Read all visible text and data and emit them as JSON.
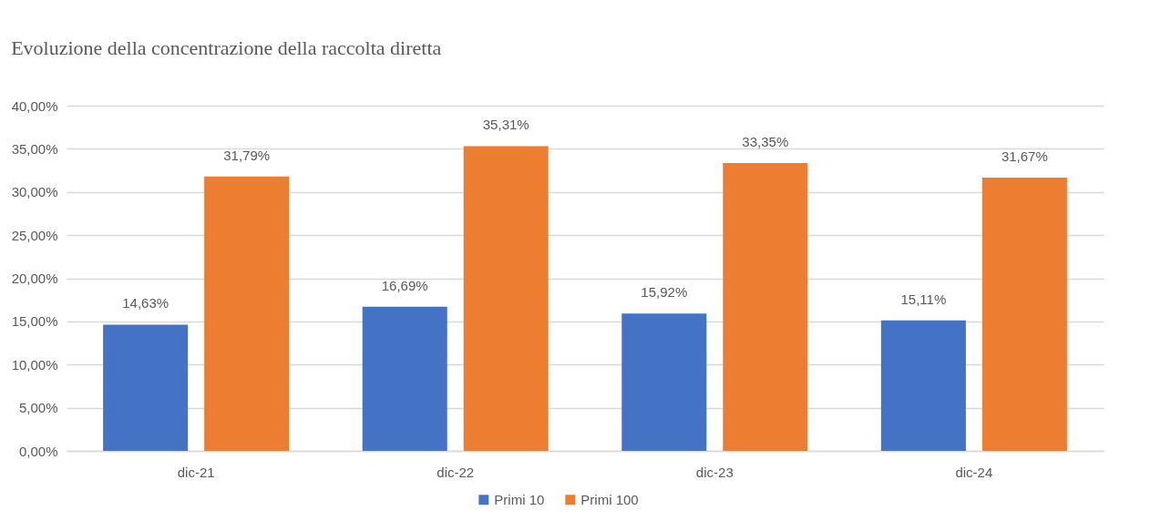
{
  "chart_data": {
    "type": "bar",
    "title": "Evoluzione della concentrazione della raccolta diretta",
    "categories": [
      "dic-21",
      "dic-22",
      "dic-23",
      "dic-24"
    ],
    "series": [
      {
        "name": "Primi 10",
        "color": "#4472c4",
        "values": [
          14.63,
          16.69,
          15.92,
          15.11
        ],
        "value_labels": [
          "14,63%",
          "16,69%",
          "15,92%",
          "15,11%"
        ]
      },
      {
        "name": "Primi 100",
        "color": "#ed7d31",
        "values": [
          31.79,
          35.31,
          33.35,
          31.67
        ],
        "value_labels": [
          "31,79%",
          "35,31%",
          "33,35%",
          "31,67%"
        ]
      }
    ],
    "ylim": [
      0,
      40
    ],
    "yticks": [
      {
        "value": 0,
        "label": "0,00%"
      },
      {
        "value": 5,
        "label": "5,00%"
      },
      {
        "value": 10,
        "label": "10,00%"
      },
      {
        "value": 15,
        "label": "15,00%"
      },
      {
        "value": 20,
        "label": "20,00%"
      },
      {
        "value": 25,
        "label": "25,00%"
      },
      {
        "value": 30,
        "label": "30,00%"
      },
      {
        "value": 35,
        "label": "35,00%"
      },
      {
        "value": 40,
        "label": "40,00%"
      }
    ],
    "grid": "y",
    "legend": "bottom"
  }
}
